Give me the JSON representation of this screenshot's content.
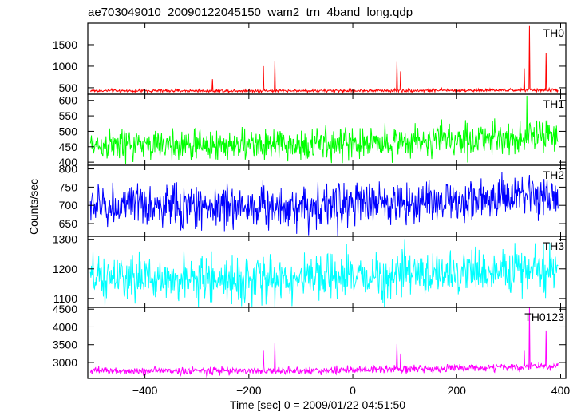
{
  "chart_data": {
    "type": "line",
    "title": "ae703049010_20090122045150_wam2_trn_4band_long.qdp",
    "xlabel": "Time [sec] 0 = 2009/01/22 04:51:50",
    "ylabel": "Counts/sec",
    "xlim": [
      -510,
      410
    ],
    "x_ticks": [
      -400,
      -200,
      0,
      200,
      400
    ],
    "x_tick_labels": [
      "−400",
      "−200",
      "0",
      "200",
      "400"
    ],
    "grid": false,
    "panels": [
      {
        "name": "TH0",
        "color": "#ff0000",
        "ylim": [
          350,
          2000
        ],
        "y_ticks": [
          500,
          1000,
          1500
        ],
        "y_tick_labels": [
          "500",
          "1000",
          "1500"
        ],
        "baseline": 430,
        "noise": 18,
        "trend": 15,
        "spikes": [
          {
            "x": -270,
            "y": 700
          },
          {
            "x": -172,
            "y": 1000
          },
          {
            "x": -150,
            "y": 1120
          },
          {
            "x": 85,
            "y": 1100
          },
          {
            "x": 92,
            "y": 880
          },
          {
            "x": 330,
            "y": 950
          },
          {
            "x": 340,
            "y": 1950
          },
          {
            "x": 372,
            "y": 1300
          }
        ]
      },
      {
        "name": "TH1",
        "color": "#00ff00",
        "ylim": [
          390,
          620
        ],
        "y_ticks": [
          400,
          450,
          500,
          550,
          600
        ],
        "y_tick_labels": [
          "400",
          "450",
          "500",
          "550",
          "600"
        ],
        "baseline": 455,
        "noise": 26,
        "trend": 30,
        "spikes": [
          {
            "x": 335,
            "y": 615
          }
        ]
      },
      {
        "name": "TH2",
        "color": "#0000ff",
        "ylim": [
          615,
          810
        ],
        "y_ticks": [
          650,
          700,
          750,
          800
        ],
        "y_tick_labels": [
          "650",
          "700",
          "750",
          "800"
        ],
        "baseline": 698,
        "noise": 30,
        "trend": 25,
        "spikes": []
      },
      {
        "name": "TH3",
        "color": "#00ffff",
        "ylim": [
          1070,
          1310
        ],
        "y_ticks": [
          1100,
          1200,
          1300
        ],
        "y_tick_labels": [
          "1100",
          "1200",
          "1300"
        ],
        "baseline": 1165,
        "noise": 38,
        "trend": 35,
        "spikes": []
      },
      {
        "name": "TH0123",
        "color": "#ff00ff",
        "ylim": [
          2550,
          4550
        ],
        "y_ticks": [
          3000,
          3500,
          4000,
          4500
        ],
        "y_tick_labels": [
          "3000",
          "3500",
          "4000",
          "4500"
        ],
        "baseline": 2760,
        "noise": 55,
        "trend": 130,
        "spikes": [
          {
            "x": -172,
            "y": 3350
          },
          {
            "x": -150,
            "y": 3550
          },
          {
            "x": 85,
            "y": 3520
          },
          {
            "x": 92,
            "y": 3250
          },
          {
            "x": 330,
            "y": 3350
          },
          {
            "x": 340,
            "y": 4550
          },
          {
            "x": 372,
            "y": 3900
          }
        ]
      }
    ]
  }
}
